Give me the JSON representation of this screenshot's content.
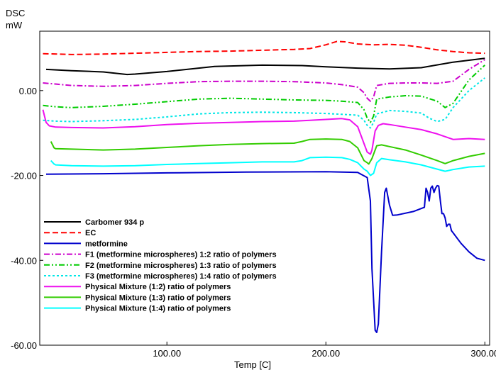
{
  "chart_data": {
    "type": "line",
    "ylabel_line1": "DSC",
    "ylabel_line2": "mW",
    "xlabel": "Temp  [C]",
    "xlim": [
      20,
      303
    ],
    "ylim": [
      -60,
      14
    ],
    "x_ticks": [
      100,
      200,
      300
    ],
    "x_tick_labels": [
      "100.00",
      "200.00",
      "300.00"
    ],
    "y_ticks": [
      0,
      -20,
      -40,
      -60
    ],
    "y_tick_labels": [
      "0.00",
      "-20.00",
      "-40.00",
      "-60.00"
    ],
    "grid": false,
    "legend_position": "bottom-left",
    "series": [
      {
        "name": "Carbomer 934 p",
        "color": "#000000",
        "dash": "solid",
        "x": [
          24,
          40,
          60,
          75,
          80,
          100,
          130,
          160,
          185,
          200,
          220,
          240,
          260,
          280,
          300
        ],
        "y": [
          5.0,
          4.7,
          4.4,
          3.8,
          3.9,
          4.5,
          5.7,
          6.0,
          5.9,
          5.6,
          5.3,
          5.1,
          5.4,
          6.7,
          7.6
        ]
      },
      {
        "name": "EC",
        "color": "#ff0000",
        "dash": "dashed",
        "x": [
          22,
          40,
          60,
          80,
          100,
          120,
          140,
          160,
          180,
          190,
          200,
          207,
          212,
          220,
          230,
          240,
          250,
          260,
          270,
          280,
          290,
          300
        ],
        "y": [
          8.7,
          8.5,
          8.6,
          8.8,
          9.0,
          9.2,
          9.3,
          9.5,
          9.7,
          9.9,
          10.8,
          11.6,
          11.5,
          11.0,
          10.8,
          10.9,
          10.7,
          10.2,
          9.6,
          9.2,
          8.9,
          8.8
        ]
      },
      {
        "name": "metformine",
        "color": "#0000cc",
        "dash": "solid",
        "x": [
          24,
          60,
          100,
          150,
          200,
          220,
          226,
          228,
          229,
          231,
          232,
          233,
          235,
          237,
          238,
          240,
          242,
          245,
          255,
          262,
          263,
          264,
          265,
          266,
          267,
          268,
          269,
          270,
          271,
          272,
          273,
          274,
          275,
          276,
          277,
          278,
          279,
          280,
          285,
          290,
          295,
          300
        ],
        "y": [
          -19.7,
          -19.6,
          -19.4,
          -19.2,
          -19.1,
          -19.3,
          -20.5,
          -26,
          -42,
          -56.5,
          -57,
          -55,
          -38,
          -24,
          -23,
          -27,
          -29.4,
          -29.3,
          -28.5,
          -27.5,
          -23,
          -24,
          -26,
          -23,
          -22.5,
          -24,
          -23,
          -22.4,
          -22.5,
          -26,
          -29,
          -29,
          -30,
          -32,
          -31.5,
          -31.5,
          -33,
          -33.5,
          -36,
          -38,
          -39.5,
          -40
        ]
      },
      {
        "name": "F1 (metformine microspheres) 1:2  ratio of polymers",
        "color": "#cc00cc",
        "dash": "dashdot",
        "x": [
          22,
          40,
          60,
          80,
          100,
          120,
          140,
          160,
          180,
          200,
          210,
          220,
          224,
          226,
          228,
          230,
          232,
          240,
          250,
          260,
          270,
          280,
          290,
          300
        ],
        "y": [
          1.8,
          1.2,
          1.0,
          1.2,
          1.7,
          2.1,
          2.2,
          2.2,
          2.1,
          1.8,
          1.4,
          0.8,
          -0.5,
          -1.8,
          -2.5,
          -1.5,
          1.2,
          1.7,
          1.8,
          1.8,
          1.7,
          2.2,
          5.0,
          7.3
        ]
      },
      {
        "name": "F2 (metformine microspheres) 1:3  ratio of polymers",
        "color": "#00cc00",
        "dash": "dashdotdot",
        "x": [
          22,
          30,
          40,
          60,
          80,
          100,
          120,
          140,
          160,
          180,
          200,
          210,
          220,
          224,
          226,
          228,
          230,
          232,
          240,
          250,
          260,
          270,
          275,
          280,
          290,
          300
        ],
        "y": [
          -3.5,
          -3.8,
          -4.0,
          -3.7,
          -3.2,
          -2.6,
          -2.0,
          -1.8,
          -2.0,
          -2.2,
          -2.3,
          -2.5,
          -2.8,
          -4.5,
          -6.5,
          -7.5,
          -6.0,
          -2.0,
          -1.5,
          -1.2,
          -1.3,
          -2.5,
          -4.0,
          -3.0,
          2.5,
          6.0
        ]
      },
      {
        "name": "F3 (metformine microspheres) 1:4  ratio of polymers",
        "color": "#00e6e6",
        "dash": "dotted",
        "x": [
          22,
          30,
          40,
          60,
          80,
          100,
          120,
          140,
          160,
          180,
          200,
          210,
          220,
          224,
          226,
          228,
          230,
          232,
          240,
          250,
          260,
          265,
          270,
          275,
          280,
          290,
          300
        ],
        "y": [
          -7.0,
          -7.2,
          -7.3,
          -7.1,
          -6.8,
          -6.2,
          -5.5,
          -5.2,
          -5.1,
          -5.2,
          -5.4,
          -5.6,
          -5.8,
          -7.0,
          -8.2,
          -8.8,
          -7.5,
          -5.5,
          -4.7,
          -4.9,
          -5.3,
          -6.5,
          -7.3,
          -6.8,
          -4.0,
          0.0,
          3.0
        ]
      },
      {
        "name": "Physical Mixture (1:2) ratio of polymers",
        "color": "#ee11ee",
        "dash": "solid",
        "x": [
          22,
          23,
          24,
          26,
          30,
          40,
          60,
          80,
          100,
          120,
          140,
          160,
          180,
          190,
          200,
          210,
          215,
          220,
          224,
          226,
          228,
          229,
          231,
          233,
          236,
          240,
          250,
          260,
          270,
          280,
          290,
          300
        ],
        "y": [
          -4.5,
          -6.0,
          -7.5,
          -8.3,
          -8.6,
          -8.7,
          -8.8,
          -8.5,
          -8.0,
          -7.7,
          -7.5,
          -7.3,
          -7.2,
          -7.0,
          -6.8,
          -6.6,
          -6.9,
          -8.5,
          -12.5,
          -14.5,
          -15.0,
          -14.0,
          -9.5,
          -8.2,
          -7.8,
          -8.0,
          -8.6,
          -9.2,
          -10.2,
          -11.5,
          -11.3,
          -11.5
        ]
      },
      {
        "name": "Physical Mixture (1:3) ratio of polymers",
        "color": "#33cc00",
        "dash": "solid",
        "x": [
          27,
          29,
          30,
          40,
          60,
          80,
          100,
          120,
          140,
          160,
          180,
          185,
          190,
          200,
          210,
          215,
          220,
          224,
          226,
          227,
          229,
          232,
          235,
          240,
          250,
          260,
          270,
          275,
          280,
          290,
          300
        ],
        "y": [
          -12.0,
          -13.5,
          -13.7,
          -13.8,
          -14.0,
          -13.8,
          -13.4,
          -13.0,
          -12.7,
          -12.5,
          -12.4,
          -12.0,
          -11.5,
          -11.4,
          -11.5,
          -12.0,
          -13.5,
          -16.5,
          -17.0,
          -17.3,
          -16.0,
          -13.0,
          -12.8,
          -13.2,
          -14.0,
          -15.2,
          -16.5,
          -17.2,
          -16.5,
          -15.5,
          -14.8
        ]
      },
      {
        "name": "Physical Mixture (1:4) ratio of polymers",
        "color": "#00ffff",
        "dash": "solid",
        "x": [
          27,
          29,
          30,
          40,
          60,
          80,
          100,
          120,
          140,
          160,
          180,
          185,
          190,
          200,
          210,
          215,
          220,
          224,
          226,
          228,
          230,
          232,
          235,
          240,
          250,
          260,
          270,
          275,
          280,
          290,
          300
        ],
        "y": [
          -16.5,
          -17.3,
          -17.5,
          -17.7,
          -17.8,
          -17.7,
          -17.4,
          -17.2,
          -17.0,
          -16.8,
          -16.8,
          -16.5,
          -15.8,
          -15.7,
          -15.8,
          -16.2,
          -17.0,
          -18.5,
          -19.0,
          -20.0,
          -19.5,
          -17.0,
          -16.0,
          -16.3,
          -16.8,
          -17.5,
          -18.5,
          -19.0,
          -18.6,
          -18.0,
          -17.8
        ]
      }
    ]
  }
}
